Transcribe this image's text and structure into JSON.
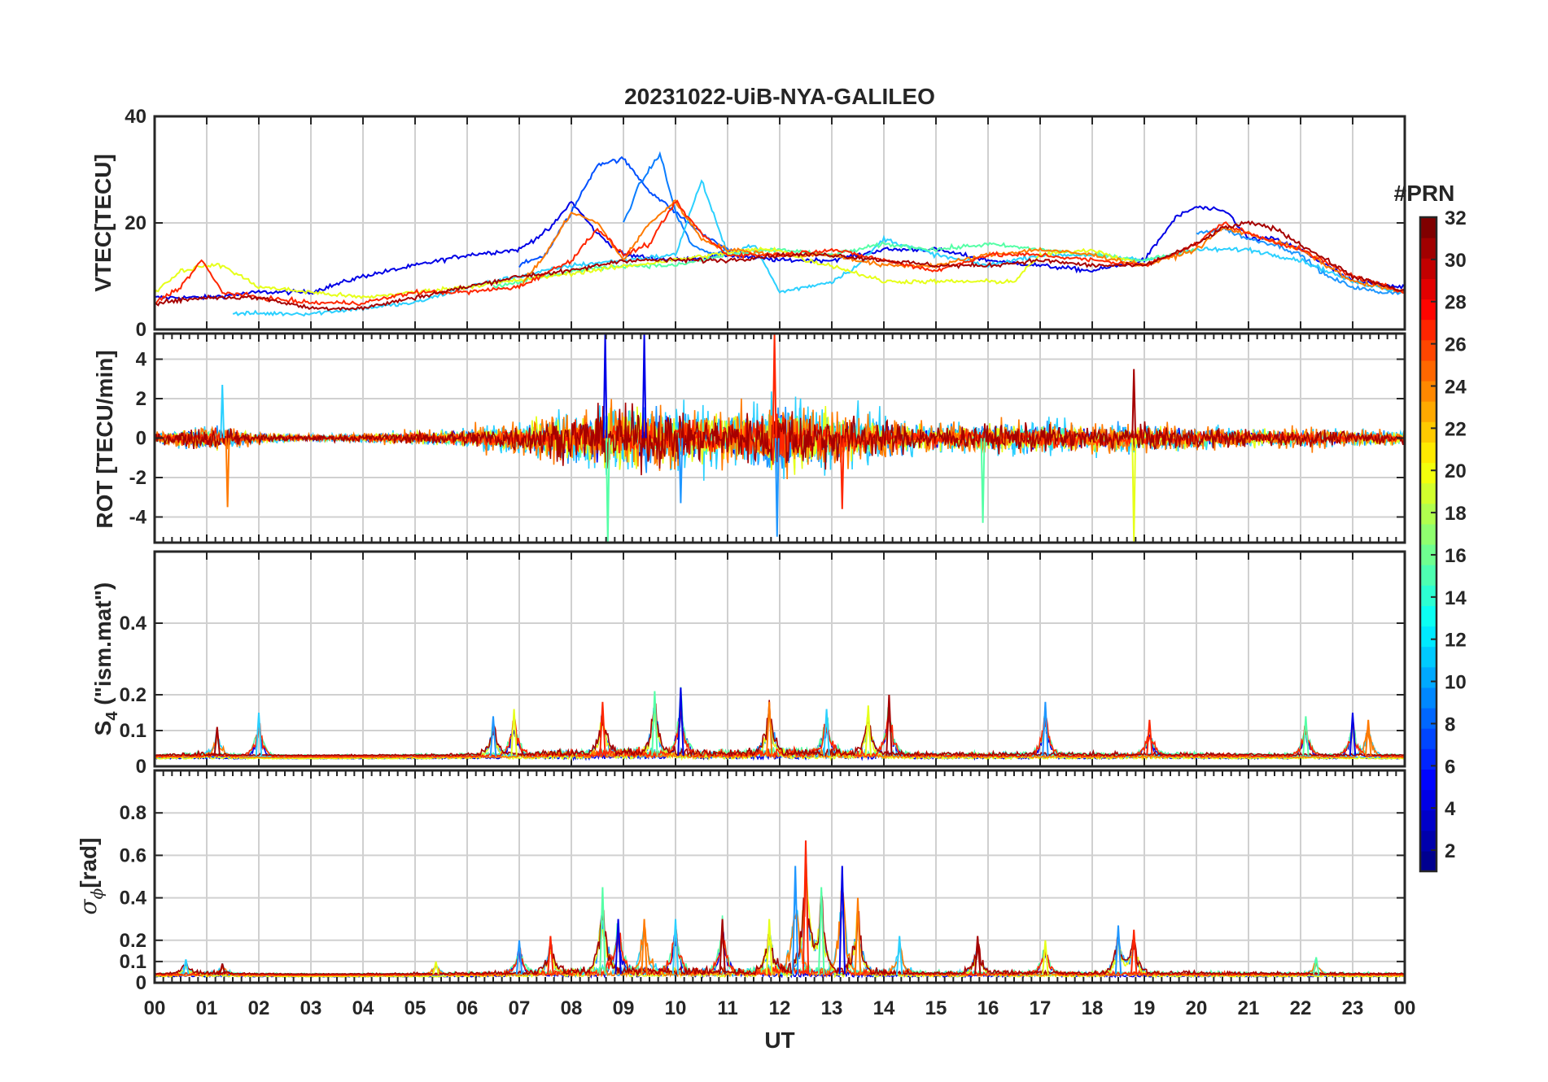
{
  "figure": {
    "title": "20231022-UiB-NYA-GALILEO",
    "xlabel": "UT",
    "x_tick_labels": [
      "00",
      "01",
      "02",
      "03",
      "04",
      "05",
      "06",
      "07",
      "08",
      "09",
      "10",
      "11",
      "12",
      "13",
      "14",
      "15",
      "16",
      "17",
      "18",
      "19",
      "20",
      "21",
      "22",
      "23",
      "00"
    ],
    "colorbar": {
      "label": "#PRN",
      "range": [
        1,
        32
      ],
      "tick_labels": [
        "2",
        "4",
        "6",
        "8",
        "10",
        "12",
        "14",
        "16",
        "18",
        "20",
        "22",
        "24",
        "26",
        "28",
        "30",
        "32"
      ],
      "colormap": "jet",
      "levels": 32
    }
  },
  "chart_data": [
    {
      "type": "line",
      "panel": "vtec",
      "ylabel": "VTEC[TECU]",
      "xlim": [
        0,
        24
      ],
      "ylim": [
        0,
        40
      ],
      "y_tick_labels": [
        "0",
        "20",
        "40"
      ],
      "grid": true,
      "series": [
        {
          "prn": 3,
          "color": "#0000E6",
          "x": [
            0,
            1,
            2,
            3,
            4,
            5,
            6,
            7,
            7.6,
            8,
            8.5,
            9,
            10,
            11,
            12,
            13,
            14,
            15,
            16,
            17,
            18,
            19,
            19.6,
            20,
            20.6,
            21,
            21.5,
            22,
            23,
            24
          ],
          "y": [
            6,
            6,
            7,
            7,
            10,
            12,
            14,
            15,
            19,
            24,
            18,
            14,
            13,
            14,
            13,
            13,
            15,
            15,
            13,
            12,
            11,
            13,
            21,
            23,
            22,
            17,
            17,
            15,
            9,
            8
          ]
        },
        {
          "prn": 6,
          "color": "#0050FF",
          "x": [
            7,
            7.5,
            8,
            8.5,
            9,
            9.5,
            10,
            10.5,
            11,
            11.5
          ],
          "y": [
            12,
            14,
            22,
            31,
            32,
            26,
            22,
            18,
            15,
            14
          ]
        },
        {
          "prn": 8,
          "color": "#0A7DFF",
          "x": [
            9,
            9.3,
            9.7,
            10,
            10.3,
            10.7,
            11
          ],
          "y": [
            20,
            27,
            33,
            22,
            16,
            14,
            15
          ]
        },
        {
          "prn": 9,
          "color": "#1E96FF",
          "x": [
            20,
            20.5,
            21,
            21.5,
            22,
            22.5,
            23,
            23.5,
            24
          ],
          "y": [
            18,
            19,
            17,
            16,
            14,
            10,
            8,
            7,
            7
          ]
        },
        {
          "prn": 11,
          "color": "#2BD0FF",
          "x": [
            1.5,
            2,
            3,
            4,
            5,
            6,
            7,
            8,
            9,
            10,
            10.5,
            11,
            11.5,
            12,
            12.5,
            13,
            13.5,
            14,
            15,
            16,
            17,
            18,
            19,
            20,
            20.5,
            21,
            22,
            23,
            24
          ],
          "y": [
            3,
            3,
            3,
            4,
            5,
            8,
            10,
            12,
            13,
            14,
            28,
            14,
            16,
            7,
            8,
            9,
            12,
            17,
            14,
            12,
            14,
            14,
            13,
            15,
            15,
            15,
            13,
            9,
            7
          ]
        },
        {
          "prn": 15,
          "color": "#55FFA6",
          "x": [
            6.5,
            7,
            7.5,
            8,
            9,
            10,
            11,
            12,
            13,
            14,
            15,
            16,
            17,
            18,
            19,
            20
          ],
          "y": [
            8,
            9,
            10,
            11,
            12,
            12,
            14,
            15,
            14,
            16,
            15,
            16,
            15,
            14,
            13,
            15
          ]
        },
        {
          "prn": 19,
          "color": "#E6FF1A",
          "x": [
            0,
            0.5,
            1,
            1.3,
            2,
            3,
            4,
            5,
            6,
            11.5,
            12,
            12.5,
            13,
            14,
            15,
            16,
            16.5,
            17,
            18,
            19
          ],
          "y": [
            7,
            11,
            12,
            12,
            8,
            7,
            6,
            7,
            8,
            15,
            15,
            13,
            12,
            9,
            9,
            9,
            9,
            14,
            15,
            12
          ]
        },
        {
          "prn": 24,
          "color": "#FF7A00",
          "x": [
            7,
            7.5,
            8,
            8.5,
            9,
            9.5,
            10,
            10.5,
            11,
            12,
            13,
            14,
            15,
            16,
            17,
            18,
            19,
            20,
            20.5,
            21,
            22,
            23,
            24
          ],
          "y": [
            8,
            14,
            22,
            20,
            13,
            20,
            24,
            17,
            15,
            14,
            14,
            12,
            12,
            14,
            15,
            14,
            12,
            15,
            19,
            18,
            15,
            9,
            7
          ]
        },
        {
          "prn": 27,
          "color": "#FF2600",
          "x": [
            0,
            0.5,
            0.9,
            1.3,
            2,
            3,
            4,
            5,
            6,
            7,
            8,
            8.5,
            9,
            9.5,
            10,
            10.5,
            11,
            12,
            13,
            14,
            15,
            16,
            17,
            18,
            19,
            20,
            20.5,
            21,
            22,
            23,
            24
          ],
          "y": [
            5,
            8,
            13,
            7,
            6,
            5,
            5,
            7,
            7,
            8,
            13,
            19,
            14,
            16,
            24,
            18,
            14,
            14,
            15,
            13,
            11,
            14,
            14,
            13,
            12,
            16,
            20,
            18,
            15,
            10,
            7
          ]
        },
        {
          "prn": 31,
          "color": "#A60000",
          "x": [
            0,
            1,
            2,
            3,
            4,
            5,
            6,
            7,
            8,
            9,
            10,
            11,
            12,
            13,
            14,
            15,
            16,
            17,
            18,
            19,
            20,
            20.5,
            21,
            21.5,
            22,
            23,
            24
          ],
          "y": [
            5,
            6,
            6,
            4,
            4,
            6,
            8,
            10,
            11,
            13,
            13,
            13,
            14,
            14,
            13,
            12,
            12,
            13,
            12,
            12,
            16,
            19,
            20,
            19,
            16,
            10,
            7
          ]
        }
      ]
    },
    {
      "type": "line",
      "panel": "rot",
      "ylabel": "ROT [TECU/min]",
      "xlim": [
        0,
        24
      ],
      "ylim": [
        -5.3,
        5.3
      ],
      "y_tick_labels": [
        "-4",
        "-2",
        "0",
        "2",
        "4"
      ],
      "grid": true,
      "activity": [
        {
          "x": 0,
          "amplitude": 0.5
        },
        {
          "x": 1,
          "amplitude": 1.3
        },
        {
          "x": 2,
          "amplitude": 0.5
        },
        {
          "x": 3,
          "amplitude": 0.3
        },
        {
          "x": 4,
          "amplitude": 0.4
        },
        {
          "x": 5,
          "amplitude": 0.6
        },
        {
          "x": 6,
          "amplitude": 0.9
        },
        {
          "x": 7,
          "amplitude": 1.5
        },
        {
          "x": 8,
          "amplitude": 2.5
        },
        {
          "x": 9,
          "amplitude": 3.3
        },
        {
          "x": 10,
          "amplitude": 2.8
        },
        {
          "x": 11,
          "amplitude": 2.2
        },
        {
          "x": 12,
          "amplitude": 3.5
        },
        {
          "x": 13,
          "amplitude": 2.8
        },
        {
          "x": 14,
          "amplitude": 1.8
        },
        {
          "x": 15,
          "amplitude": 1.3
        },
        {
          "x": 16,
          "amplitude": 1.4
        },
        {
          "x": 17,
          "amplitude": 1.4
        },
        {
          "x": 18,
          "amplitude": 1.3
        },
        {
          "x": 19,
          "amplitude": 1.4
        },
        {
          "x": 20,
          "amplitude": 1.1
        },
        {
          "x": 21,
          "amplitude": 0.9
        },
        {
          "x": 22,
          "amplitude": 0.9
        },
        {
          "x": 23,
          "amplitude": 0.7
        },
        {
          "x": 24,
          "amplitude": 0.6
        }
      ],
      "peaks": [
        {
          "x": 8.65,
          "y": 5.3
        },
        {
          "x": 8.7,
          "y": -5.3
        },
        {
          "x": 11.9,
          "y": 5.3
        },
        {
          "x": 11.95,
          "y": -5.0
        },
        {
          "x": 18.8,
          "y": -5.3
        },
        {
          "x": 18.8,
          "y": 3.5
        },
        {
          "x": 1.3,
          "y": 2.7
        },
        {
          "x": 1.4,
          "y": -3.5
        },
        {
          "x": 9.4,
          "y": 5.3
        },
        {
          "x": 15.9,
          "y": -4.3
        },
        {
          "x": 13.2,
          "y": -3.6
        },
        {
          "x": 10.1,
          "y": -3.3
        }
      ]
    },
    {
      "type": "line",
      "panel": "s4",
      "ylabel": "S4 (\"ism.mat\")",
      "xlim": [
        0,
        24
      ],
      "ylim": [
        0,
        0.6
      ],
      "y_tick_labels": [
        "0",
        "0.1",
        "0.2",
        "0.4"
      ],
      "grid": true,
      "baseline": 0.03,
      "peaks": [
        {
          "x": 2.0,
          "y": 0.15
        },
        {
          "x": 1.2,
          "y": 0.11
        },
        {
          "x": 6.9,
          "y": 0.16
        },
        {
          "x": 6.5,
          "y": 0.14
        },
        {
          "x": 8.6,
          "y": 0.18
        },
        {
          "x": 9.6,
          "y": 0.21
        },
        {
          "x": 10.1,
          "y": 0.22
        },
        {
          "x": 11.8,
          "y": 0.18
        },
        {
          "x": 12.9,
          "y": 0.16
        },
        {
          "x": 14.1,
          "y": 0.2
        },
        {
          "x": 13.7,
          "y": 0.17
        },
        {
          "x": 17.1,
          "y": 0.18
        },
        {
          "x": 19.1,
          "y": 0.13
        },
        {
          "x": 22.1,
          "y": 0.14
        },
        {
          "x": 23.0,
          "y": 0.15
        },
        {
          "x": 23.3,
          "y": 0.13
        }
      ]
    },
    {
      "type": "line",
      "panel": "sigma_phi",
      "ylabel": "σφ[rad]",
      "xlim": [
        0,
        24
      ],
      "ylim": [
        0,
        1.0
      ],
      "y_tick_labels": [
        "0",
        "0.1",
        "0.2",
        "0.4",
        "0.6",
        "0.8"
      ],
      "grid": true,
      "baseline": 0.04,
      "peaks": [
        {
          "x": 0.6,
          "y": 0.11
        },
        {
          "x": 1.3,
          "y": 0.09
        },
        {
          "x": 5.4,
          "y": 0.1
        },
        {
          "x": 7.0,
          "y": 0.2
        },
        {
          "x": 7.6,
          "y": 0.22
        },
        {
          "x": 8.6,
          "y": 0.45
        },
        {
          "x": 8.9,
          "y": 0.3
        },
        {
          "x": 9.4,
          "y": 0.3
        },
        {
          "x": 10.0,
          "y": 0.3
        },
        {
          "x": 10.9,
          "y": 0.3
        },
        {
          "x": 11.8,
          "y": 0.3
        },
        {
          "x": 12.3,
          "y": 0.55
        },
        {
          "x": 12.5,
          "y": 0.67
        },
        {
          "x": 12.8,
          "y": 0.45
        },
        {
          "x": 13.2,
          "y": 0.55
        },
        {
          "x": 13.5,
          "y": 0.4
        },
        {
          "x": 14.3,
          "y": 0.22
        },
        {
          "x": 15.8,
          "y": 0.22
        },
        {
          "x": 17.1,
          "y": 0.2
        },
        {
          "x": 18.5,
          "y": 0.27
        },
        {
          "x": 18.8,
          "y": 0.25
        },
        {
          "x": 22.3,
          "y": 0.12
        }
      ]
    }
  ]
}
